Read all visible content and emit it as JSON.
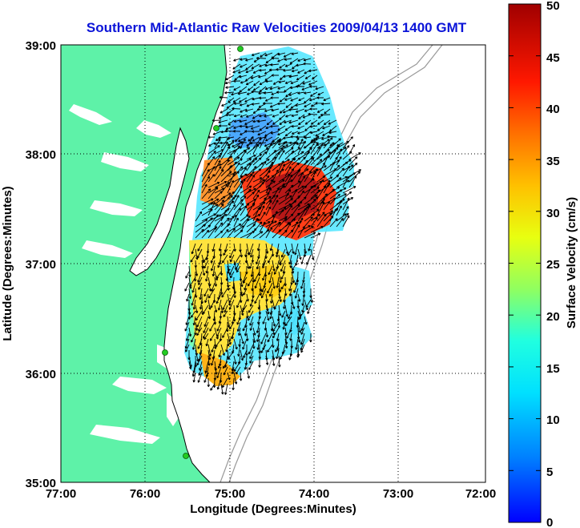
{
  "title": "Southern Mid-Atlantic Raw Velocities 2009/04/13 1400 GMT",
  "xlabel": "Longitude (Degrees:Minutes)",
  "ylabel": "Latitude (Degrees:Minutes)",
  "colorbar": {
    "label": "Surface Velocity (cm/s)",
    "ticks": [
      "0",
      "5",
      "10",
      "15",
      "20",
      "25",
      "30",
      "35",
      "40",
      "45",
      "50"
    ],
    "min": 0,
    "max": 50,
    "colormap": "jet"
  },
  "map": {
    "x_ticks": [
      "77:00",
      "76:00",
      "75:00",
      "74:00",
      "73:00",
      "72:00"
    ],
    "y_ticks": [
      "39:00",
      "38:00",
      "37:00",
      "36:00",
      "35:00"
    ],
    "lon_range": [
      -77,
      -72
    ],
    "lat_range": [
      35,
      39
    ],
    "land_color": "#5ef2a8",
    "grid": "dotted",
    "station_color": "#22cc22"
  }
}
